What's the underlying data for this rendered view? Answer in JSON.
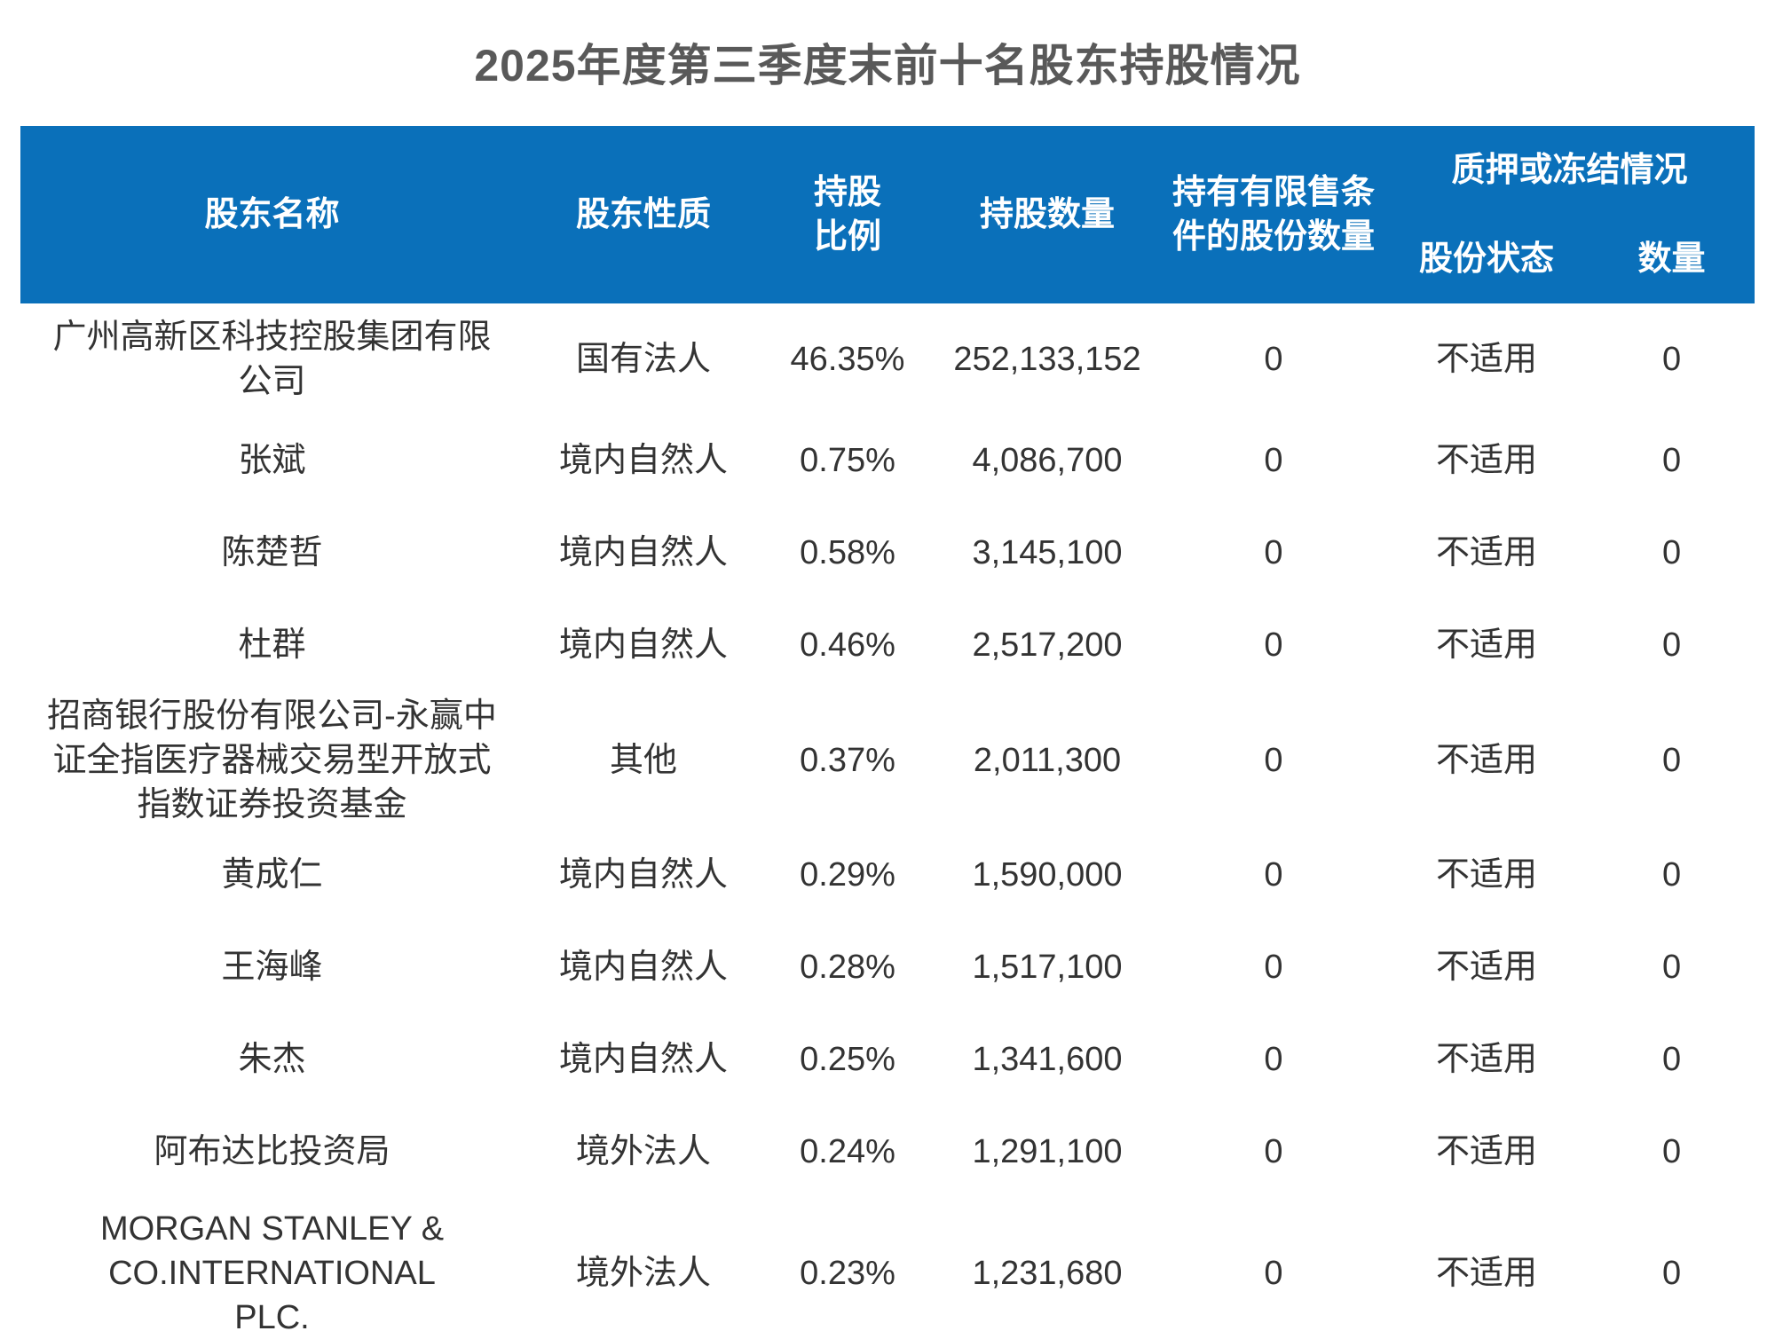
{
  "page_title": "2025年度第三季度末前十名股东持股情况",
  "table": {
    "header": {
      "shareholder_name": "股东名称",
      "shareholder_nature": "股东性质",
      "holding_ratio": [
        "持股",
        "比例"
      ],
      "holding_quantity": "持股数量",
      "restricted_shares": [
        "持有有限售条",
        "件的股份数量"
      ],
      "pledge_or_freeze_group": "质押或冻结情况",
      "share_status": "股份状态",
      "pledge_quantity": "数量"
    },
    "rows": [
      {
        "name": "广州高新区科技控股集团有限\n公司",
        "nature": "国有法人",
        "ratio": "46.35%",
        "shares": "252,133,152",
        "restricted": "0",
        "status": "不适用",
        "pledge_qty": "0"
      },
      {
        "name": "张斌",
        "nature": "境内自然人",
        "ratio": "0.75%",
        "shares": "4,086,700",
        "restricted": "0",
        "status": "不适用",
        "pledge_qty": "0"
      },
      {
        "name": "陈楚哲",
        "nature": "境内自然人",
        "ratio": "0.58%",
        "shares": "3,145,100",
        "restricted": "0",
        "status": "不适用",
        "pledge_qty": "0"
      },
      {
        "name": "杜群",
        "nature": "境内自然人",
        "ratio": "0.46%",
        "shares": "2,517,200",
        "restricted": "0",
        "status": "不适用",
        "pledge_qty": "0"
      },
      {
        "name": "招商银行股份有限公司-永赢中\n证全指医疗器械交易型开放式\n指数证券投资基金",
        "nature": "其他",
        "ratio": "0.37%",
        "shares": "2,011,300",
        "restricted": "0",
        "status": "不适用",
        "pledge_qty": "0"
      },
      {
        "name": "黄成仁",
        "nature": "境内自然人",
        "ratio": "0.29%",
        "shares": "1,590,000",
        "restricted": "0",
        "status": "不适用",
        "pledge_qty": "0"
      },
      {
        "name": "王海峰",
        "nature": "境内自然人",
        "ratio": "0.28%",
        "shares": "1,517,100",
        "restricted": "0",
        "status": "不适用",
        "pledge_qty": "0"
      },
      {
        "name": "朱杰",
        "nature": "境内自然人",
        "ratio": "0.25%",
        "shares": "1,341,600",
        "restricted": "0",
        "status": "不适用",
        "pledge_qty": "0"
      },
      {
        "name": "阿布达比投资局",
        "nature": "境外法人",
        "ratio": "0.24%",
        "shares": "1,291,100",
        "restricted": "0",
        "status": "不适用",
        "pledge_qty": "0"
      },
      {
        "name": "MORGAN STANLEY &\nCO.INTERNATIONAL\nPLC.",
        "nature": "境外法人",
        "ratio": "0.23%",
        "shares": "1,231,680",
        "restricted": "0",
        "status": "不适用",
        "pledge_qty": "0"
      }
    ]
  },
  "colors": {
    "header_background": "#0A70BA",
    "header_text": "#FFFFFF",
    "title_text": "#595959",
    "body_text": "#333333"
  }
}
